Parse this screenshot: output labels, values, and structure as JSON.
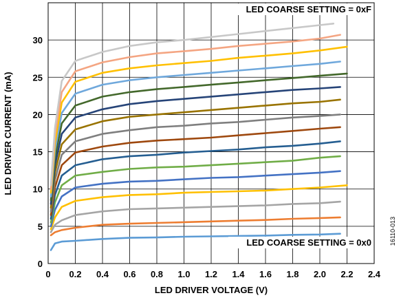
{
  "chart_data": {
    "type": "line",
    "title": "",
    "xlabel": "LED DRIVER VOLTAGE (V)",
    "ylabel": "LED DRIVER CURRENT (mA)",
    "xlim": [
      0,
      2.4
    ],
    "ylim": [
      0,
      35
    ],
    "xticks": [
      "0",
      "0.2",
      "0.4",
      "0.6",
      "0.8",
      "1.0",
      "1.2",
      "1.4",
      "1.6",
      "1.8",
      "2.0",
      "2.2",
      "2.4"
    ],
    "yticks": [
      "0",
      "5",
      "10",
      "15",
      "20",
      "25",
      "30"
    ],
    "grid": true,
    "legend": "none",
    "annotations": {
      "top": "LED COARSE SETTING = 0xF",
      "bottom": "LED COARSE SETTING = 0x0",
      "figure_id": "16110-013"
    },
    "series": [
      {
        "color": "#5b9bd5",
        "points": [
          [
            0.02,
            1.8
          ],
          [
            0.05,
            2.7
          ],
          [
            0.1,
            2.95
          ],
          [
            0.2,
            3.05
          ],
          [
            0.4,
            3.3
          ],
          [
            0.6,
            3.45
          ],
          [
            0.8,
            3.5
          ],
          [
            1.0,
            3.6
          ],
          [
            1.2,
            3.65
          ],
          [
            1.4,
            3.7
          ],
          [
            1.6,
            3.75
          ],
          [
            1.8,
            3.85
          ],
          [
            2.0,
            3.9
          ],
          [
            2.15,
            4.0
          ]
        ]
      },
      {
        "color": "#ed7d31",
        "points": [
          [
            0.02,
            3.8
          ],
          [
            0.05,
            4.2
          ],
          [
            0.1,
            4.5
          ],
          [
            0.2,
            4.8
          ],
          [
            0.4,
            5.2
          ],
          [
            0.6,
            5.35
          ],
          [
            0.8,
            5.45
          ],
          [
            1.0,
            5.55
          ],
          [
            1.2,
            5.65
          ],
          [
            1.4,
            5.75
          ],
          [
            1.6,
            5.85
          ],
          [
            1.8,
            6.0
          ],
          [
            2.0,
            6.1
          ],
          [
            2.15,
            6.2
          ]
        ]
      },
      {
        "color": "#a5a5a5",
        "points": [
          [
            0.02,
            4.2
          ],
          [
            0.05,
            5.2
          ],
          [
            0.1,
            5.8
          ],
          [
            0.2,
            6.5
          ],
          [
            0.4,
            7.0
          ],
          [
            0.6,
            7.3
          ],
          [
            0.8,
            7.4
          ],
          [
            1.0,
            7.5
          ],
          [
            1.2,
            7.6
          ],
          [
            1.4,
            7.7
          ],
          [
            1.6,
            7.8
          ],
          [
            1.8,
            8.0
          ],
          [
            2.0,
            8.1
          ],
          [
            2.15,
            8.3
          ]
        ]
      },
      {
        "color": "#ffc000",
        "points": [
          [
            0.02,
            4.6
          ],
          [
            0.05,
            6.2
          ],
          [
            0.1,
            7.6
          ],
          [
            0.2,
            8.4
          ],
          [
            0.4,
            8.9
          ],
          [
            0.6,
            9.2
          ],
          [
            0.8,
            9.3
          ],
          [
            1.0,
            9.5
          ],
          [
            1.2,
            9.6
          ],
          [
            1.4,
            9.7
          ],
          [
            1.6,
            9.8
          ],
          [
            1.8,
            10.0
          ],
          [
            2.0,
            10.2
          ],
          [
            2.2,
            10.5
          ]
        ]
      },
      {
        "color": "#4472c4",
        "points": [
          [
            0.02,
            5.0
          ],
          [
            0.05,
            7.2
          ],
          [
            0.1,
            9.0
          ],
          [
            0.2,
            10.2
          ],
          [
            0.4,
            10.7
          ],
          [
            0.6,
            11.0
          ],
          [
            0.8,
            11.1
          ],
          [
            1.0,
            11.3
          ],
          [
            1.2,
            11.5
          ],
          [
            1.4,
            11.6
          ],
          [
            1.6,
            11.8
          ],
          [
            1.8,
            12.0
          ],
          [
            2.0,
            12.2
          ],
          [
            2.15,
            12.4
          ]
        ]
      },
      {
        "color": "#70ad47",
        "points": [
          [
            0.02,
            5.5
          ],
          [
            0.05,
            8.2
          ],
          [
            0.1,
            10.5
          ],
          [
            0.2,
            11.8
          ],
          [
            0.4,
            12.3
          ],
          [
            0.6,
            12.7
          ],
          [
            0.8,
            12.9
          ],
          [
            1.0,
            13.0
          ],
          [
            1.2,
            13.2
          ],
          [
            1.4,
            13.4
          ],
          [
            1.6,
            13.6
          ],
          [
            1.8,
            13.8
          ],
          [
            2.0,
            14.2
          ],
          [
            2.15,
            14.4
          ]
        ]
      },
      {
        "color": "#255e91",
        "points": [
          [
            0.02,
            6.0
          ],
          [
            0.05,
            9.2
          ],
          [
            0.1,
            11.8
          ],
          [
            0.2,
            13.2
          ],
          [
            0.4,
            14.0
          ],
          [
            0.6,
            14.4
          ],
          [
            0.8,
            14.6
          ],
          [
            1.0,
            14.9
          ],
          [
            1.2,
            15.1
          ],
          [
            1.4,
            15.3
          ],
          [
            1.6,
            15.6
          ],
          [
            1.8,
            15.8
          ],
          [
            2.0,
            16.1
          ],
          [
            2.15,
            16.4
          ]
        ]
      },
      {
        "color": "#9e480e",
        "points": [
          [
            0.02,
            6.5
          ],
          [
            0.05,
            10.2
          ],
          [
            0.1,
            13.2
          ],
          [
            0.2,
            14.9
          ],
          [
            0.4,
            15.7
          ],
          [
            0.6,
            16.2
          ],
          [
            0.8,
            16.5
          ],
          [
            1.0,
            16.7
          ],
          [
            1.2,
            16.9
          ],
          [
            1.4,
            17.2
          ],
          [
            1.6,
            17.5
          ],
          [
            1.8,
            17.8
          ],
          [
            2.0,
            18.1
          ],
          [
            2.15,
            18.3
          ]
        ]
      },
      {
        "color": "#7f7f7f",
        "points": [
          [
            0.02,
            7.0
          ],
          [
            0.05,
            11.2
          ],
          [
            0.1,
            14.6
          ],
          [
            0.2,
            16.4
          ],
          [
            0.4,
            17.4
          ],
          [
            0.6,
            17.9
          ],
          [
            0.8,
            18.3
          ],
          [
            1.0,
            18.5
          ],
          [
            1.2,
            18.8
          ],
          [
            1.4,
            19.0
          ],
          [
            1.6,
            19.3
          ],
          [
            1.8,
            19.6
          ],
          [
            2.0,
            19.8
          ],
          [
            2.15,
            20.0
          ]
        ]
      },
      {
        "color": "#997300",
        "points": [
          [
            0.02,
            7.5
          ],
          [
            0.05,
            12.2
          ],
          [
            0.1,
            16.0
          ],
          [
            0.2,
            18.0
          ],
          [
            0.4,
            19.1
          ],
          [
            0.6,
            19.7
          ],
          [
            0.8,
            20.0
          ],
          [
            1.0,
            20.3
          ],
          [
            1.2,
            20.6
          ],
          [
            1.4,
            20.9
          ],
          [
            1.6,
            21.2
          ],
          [
            1.8,
            21.5
          ],
          [
            2.0,
            21.7
          ],
          [
            2.15,
            22.0
          ]
        ]
      },
      {
        "color": "#264478",
        "points": [
          [
            0.02,
            8.0
          ],
          [
            0.05,
            13.2
          ],
          [
            0.1,
            17.4
          ],
          [
            0.2,
            19.6
          ],
          [
            0.4,
            20.7
          ],
          [
            0.6,
            21.4
          ],
          [
            0.8,
            21.8
          ],
          [
            1.0,
            22.1
          ],
          [
            1.2,
            22.4
          ],
          [
            1.4,
            22.7
          ],
          [
            1.6,
            23.0
          ],
          [
            1.8,
            23.3
          ],
          [
            2.0,
            23.5
          ],
          [
            2.15,
            23.7
          ]
        ]
      },
      {
        "color": "#43682b",
        "points": [
          [
            0.02,
            8.5
          ],
          [
            0.05,
            14.2
          ],
          [
            0.1,
            18.8
          ],
          [
            0.2,
            21.2
          ],
          [
            0.4,
            22.4
          ],
          [
            0.6,
            23.0
          ],
          [
            0.8,
            23.4
          ],
          [
            1.0,
            23.7
          ],
          [
            1.2,
            24.0
          ],
          [
            1.4,
            24.3
          ],
          [
            1.6,
            24.6
          ],
          [
            1.8,
            24.9
          ],
          [
            2.0,
            25.2
          ],
          [
            2.2,
            25.5
          ]
        ]
      },
      {
        "color": "#6fa8dc",
        "points": [
          [
            0.02,
            9.0
          ],
          [
            0.05,
            15.2
          ],
          [
            0.1,
            20.2
          ],
          [
            0.2,
            22.8
          ],
          [
            0.4,
            24.0
          ],
          [
            0.6,
            24.6
          ],
          [
            0.8,
            25.0
          ],
          [
            1.0,
            25.3
          ],
          [
            1.2,
            25.6
          ],
          [
            1.4,
            25.9
          ],
          [
            1.6,
            26.2
          ],
          [
            1.8,
            26.5
          ],
          [
            2.0,
            26.8
          ],
          [
            2.15,
            27.1
          ]
        ]
      },
      {
        "color": "#ffc000",
        "points": [
          [
            0.02,
            9.5
          ],
          [
            0.05,
            16.2
          ],
          [
            0.1,
            21.6
          ],
          [
            0.2,
            24.4
          ],
          [
            0.4,
            25.6
          ],
          [
            0.6,
            26.2
          ],
          [
            0.8,
            26.6
          ],
          [
            1.0,
            26.9
          ],
          [
            1.2,
            27.2
          ],
          [
            1.4,
            27.6
          ],
          [
            1.6,
            27.9
          ],
          [
            1.8,
            28.2
          ],
          [
            2.0,
            28.6
          ],
          [
            2.2,
            29.1
          ]
        ]
      },
      {
        "color": "#f4a582",
        "points": [
          [
            0.02,
            10.0
          ],
          [
            0.05,
            17.2
          ],
          [
            0.1,
            23.0
          ],
          [
            0.2,
            25.8
          ],
          [
            0.4,
            27.0
          ],
          [
            0.6,
            27.7
          ],
          [
            0.8,
            28.2
          ],
          [
            1.0,
            28.5
          ],
          [
            1.2,
            28.8
          ],
          [
            1.4,
            29.2
          ],
          [
            1.6,
            29.5
          ],
          [
            1.8,
            29.8
          ],
          [
            2.0,
            30.2
          ],
          [
            2.15,
            30.7
          ]
        ]
      },
      {
        "color": "#c8c8c8",
        "points": [
          [
            0.02,
            10.5
          ],
          [
            0.05,
            18.2
          ],
          [
            0.1,
            24.5
          ],
          [
            0.2,
            27.2
          ],
          [
            0.4,
            28.4
          ],
          [
            0.6,
            29.2
          ],
          [
            0.8,
            29.7
          ],
          [
            1.0,
            30.0
          ],
          [
            1.2,
            30.4
          ],
          [
            1.4,
            30.8
          ],
          [
            1.6,
            31.2
          ],
          [
            1.8,
            31.6
          ],
          [
            2.0,
            32.0
          ],
          [
            2.1,
            32.2
          ]
        ]
      }
    ]
  }
}
